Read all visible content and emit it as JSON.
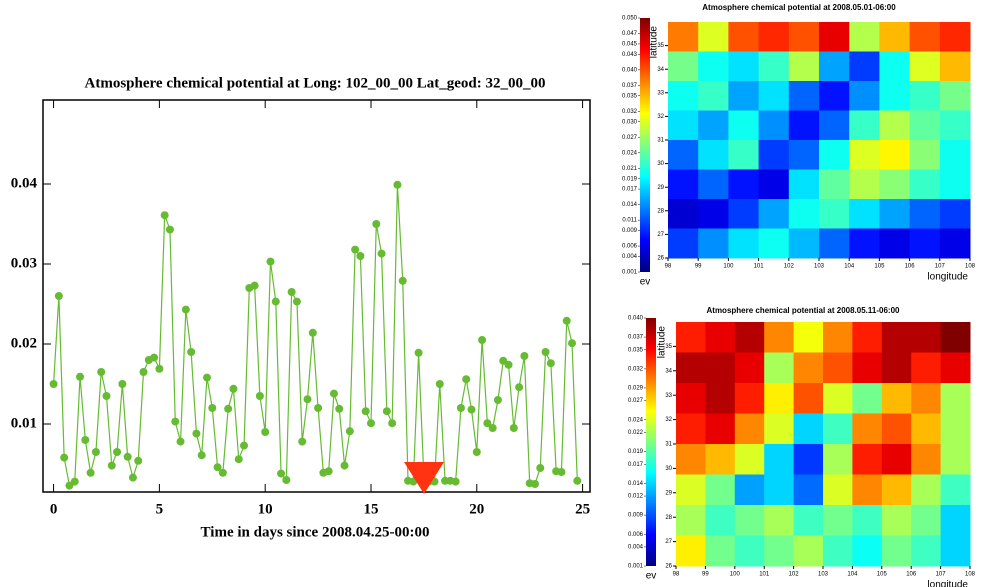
{
  "chart_data": [
    {
      "type": "line",
      "title": "Atmosphere chemical potential at Long: 102_00_00 Lat_geod:  32_00_00",
      "x_label": "Time in days since 2008.04.25-00:00",
      "x": [
        0,
        0.25,
        0.5,
        0.75,
        1,
        1.25,
        1.5,
        1.75,
        2,
        2.25,
        2.5,
        2.75,
        3,
        3.25,
        3.5,
        3.75,
        4,
        4.25,
        4.5,
        4.75,
        5,
        5.25,
        5.5,
        5.75,
        6,
        6.25,
        6.5,
        6.75,
        7,
        7.25,
        7.5,
        7.75,
        8,
        8.25,
        8.5,
        8.75,
        9,
        9.25,
        9.5,
        9.75,
        10,
        10.25,
        10.5,
        10.75,
        11,
        11.25,
        11.5,
        11.75,
        12,
        12.25,
        12.5,
        12.75,
        13,
        13.25,
        13.5,
        13.75,
        14,
        14.25,
        14.5,
        14.75,
        15,
        15.25,
        15.5,
        15.75,
        16,
        16.25,
        16.5,
        16.75,
        17,
        17.25,
        17.5,
        17.75,
        18,
        18.25,
        18.5,
        18.75,
        19,
        19.25,
        19.5,
        19.75,
        20,
        20.25,
        20.5,
        20.75,
        21,
        21.25,
        21.5,
        21.75,
        22,
        22.25,
        22.5,
        22.75,
        23,
        23.25,
        23.5,
        23.75,
        24,
        24.25,
        24.5,
        24.75
      ],
      "values": [
        0.015,
        0.026,
        0.0058,
        0.0023,
        0.0028,
        0.0159,
        0.008,
        0.0039,
        0.0065,
        0.0165,
        0.0135,
        0.0048,
        0.0065,
        0.015,
        0.0059,
        0.0033,
        0.0054,
        0.0165,
        0.018,
        0.0183,
        0.0169,
        0.0361,
        0.0343,
        0.0103,
        0.0078,
        0.0243,
        0.019,
        0.0088,
        0.0061,
        0.0158,
        0.012,
        0.0046,
        0.0039,
        0.0119,
        0.0144,
        0.0056,
        0.0073,
        0.027,
        0.0273,
        0.0135,
        0.009,
        0.0303,
        0.0253,
        0.0038,
        0.003,
        0.0265,
        0.0253,
        0.0078,
        0.0131,
        0.0214,
        0.012,
        0.0039,
        0.0041,
        0.0138,
        0.0119,
        0.0048,
        0.0091,
        0.0318,
        0.031,
        0.0116,
        0.0101,
        0.035,
        0.0313,
        0.0116,
        0.0101,
        0.0399,
        0.0279,
        0.0029,
        0.0028,
        0.0189,
        0.0033,
        0.0028,
        0.0028,
        0.015,
        0.0029,
        0.0029,
        0.0028,
        0.012,
        0.0156,
        0.0118,
        0.0065,
        0.0205,
        0.0101,
        0.0095,
        0.013,
        0.0179,
        0.0174,
        0.0095,
        0.0146,
        0.0185,
        0.0026,
        0.0025,
        0.0045,
        0.019,
        0.0176,
        0.0041,
        0.004,
        0.0229,
        0.0201,
        0.0029
      ],
      "color": "#66bb33",
      "xlim": [
        -0.5,
        25.35
      ],
      "ylim": [
        0.0015,
        0.0505
      ],
      "xticks": [
        0,
        5,
        10,
        15,
        20,
        25
      ],
      "yticks": [
        0.01,
        0.02,
        0.03,
        0.04
      ]
    },
    {
      "type": "heatmap",
      "title": "Atmosphere chemical potential at 2008.05.01-06:00",
      "x_label": "longitude",
      "y_label": "latitude",
      "colorbar_label": "ev",
      "xlim": [
        98,
        108
      ],
      "ylim": [
        26,
        36
      ],
      "xticks": [
        98,
        99,
        100,
        101,
        102,
        103,
        104,
        105,
        106,
        107,
        108
      ],
      "yticks": [
        26,
        27,
        28,
        29,
        30,
        31,
        32,
        33,
        34,
        35
      ],
      "clim": [
        0.001,
        0.05
      ],
      "cticks": [
        {
          "value": 0.05,
          "label": "0.050"
        },
        0.047,
        0.045,
        0.043,
        {
          "value": 0.04,
          "label": "0.040"
        },
        0.037,
        0.035,
        0.032,
        {
          "value": 0.03,
          "label": "0.030"
        },
        0.027,
        0.024,
        0.021,
        0.019,
        0.017,
        0.014,
        0.011,
        0.009,
        0.006,
        0.004,
        0.001
      ],
      "z": [
        [
          0.038,
          0.03,
          0.04,
          0.042,
          0.04,
          0.045,
          0.028,
          0.035,
          0.04,
          0.042
        ],
        [
          0.025,
          0.02,
          0.018,
          0.022,
          0.028,
          0.015,
          0.01,
          0.02,
          0.03,
          0.035
        ],
        [
          0.02,
          0.022,
          0.015,
          0.018,
          0.012,
          0.008,
          0.014,
          0.02,
          0.022,
          0.025
        ],
        [
          0.018,
          0.015,
          0.02,
          0.014,
          0.008,
          0.012,
          0.022,
          0.028,
          0.024,
          0.022
        ],
        [
          0.012,
          0.018,
          0.022,
          0.01,
          0.012,
          0.02,
          0.03,
          0.032,
          0.026,
          0.02
        ],
        [
          0.008,
          0.012,
          0.008,
          0.006,
          0.018,
          0.024,
          0.028,
          0.026,
          0.022,
          0.02
        ],
        [
          0.005,
          0.006,
          0.01,
          0.015,
          0.02,
          0.022,
          0.018,
          0.015,
          0.012,
          0.01
        ],
        [
          0.01,
          0.014,
          0.018,
          0.02,
          0.016,
          0.012,
          0.008,
          0.006,
          0.008,
          0.006
        ]
      ]
    },
    {
      "type": "heatmap",
      "title": "Atmosphere chemical potential at 2008.05.11-06:00",
      "x_label": "longitude",
      "y_label": "latitude",
      "colorbar_label": "ev",
      "xlim": [
        98,
        108
      ],
      "ylim": [
        26,
        36
      ],
      "xticks": [
        98,
        99,
        100,
        101,
        102,
        103,
        104,
        105,
        106,
        107,
        108
      ],
      "yticks": [
        26,
        27,
        28,
        29,
        30,
        31,
        32,
        33,
        34,
        35
      ],
      "clim": [
        0.001,
        0.04
      ],
      "cticks": [
        {
          "value": 0.04,
          "label": "0.040"
        },
        0.037,
        0.035,
        0.032,
        0.029,
        0.027,
        0.024,
        0.022,
        0.019,
        0.017,
        0.014,
        0.012,
        0.009,
        0.006,
        0.004,
        0.001
      ],
      "z": [
        [
          0.034,
          0.036,
          0.038,
          0.03,
          0.025,
          0.03,
          0.034,
          0.038,
          0.038,
          0.04
        ],
        [
          0.038,
          0.038,
          0.036,
          0.022,
          0.03,
          0.032,
          0.036,
          0.038,
          0.034,
          0.036
        ],
        [
          0.036,
          0.038,
          0.034,
          0.026,
          0.032,
          0.024,
          0.02,
          0.028,
          0.03,
          0.022
        ],
        [
          0.034,
          0.036,
          0.03,
          0.024,
          0.014,
          0.018,
          0.03,
          0.032,
          0.028,
          0.022
        ],
        [
          0.03,
          0.028,
          0.024,
          0.014,
          0.008,
          0.022,
          0.034,
          0.036,
          0.03,
          0.022
        ],
        [
          0.024,
          0.02,
          0.012,
          0.014,
          0.01,
          0.024,
          0.03,
          0.028,
          0.022,
          0.018
        ],
        [
          0.022,
          0.018,
          0.02,
          0.022,
          0.018,
          0.02,
          0.018,
          0.022,
          0.02,
          0.014
        ],
        [
          0.026,
          0.02,
          0.018,
          0.02,
          0.022,
          0.018,
          0.016,
          0.02,
          0.018,
          0.014
        ]
      ]
    }
  ]
}
